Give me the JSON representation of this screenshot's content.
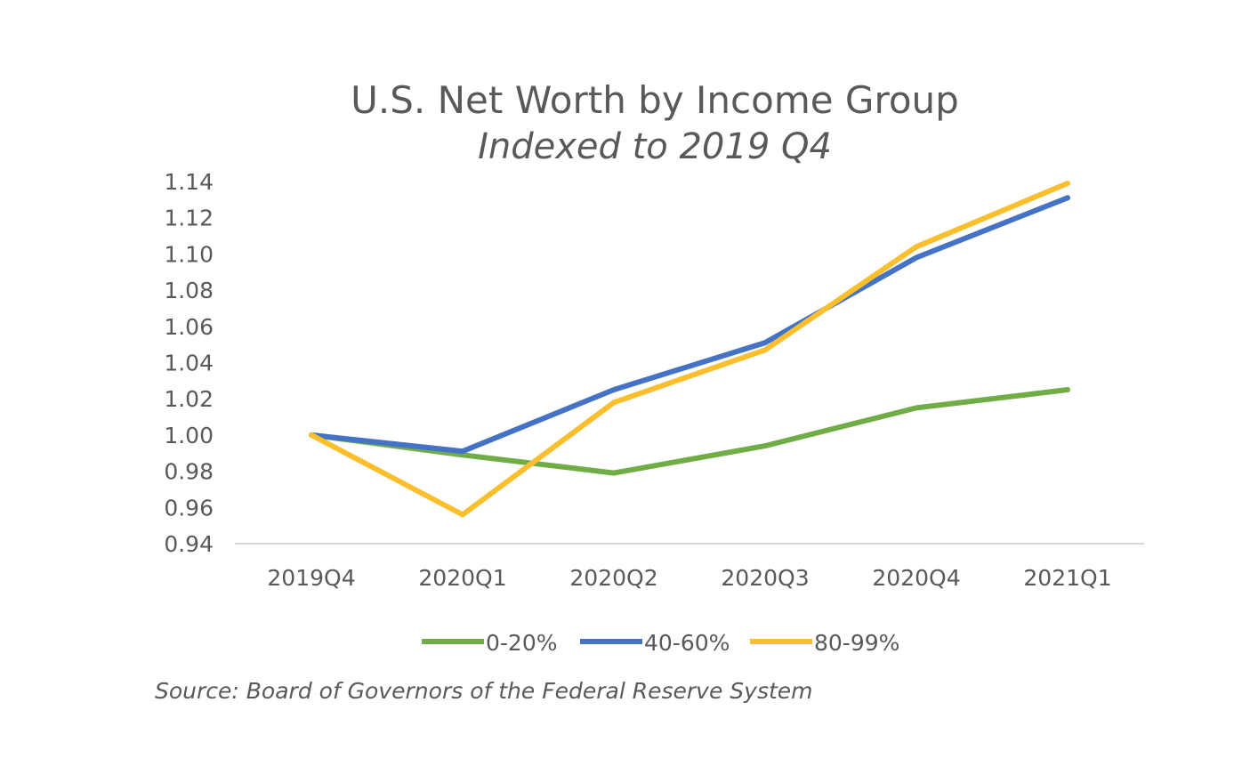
{
  "chart_data": {
    "type": "line",
    "title": "U.S. Net Worth by Income Group",
    "subtitle": "Indexed to 2019 Q4",
    "xlabel": "",
    "ylabel": "",
    "categories": [
      "2019Q4",
      "2020Q1",
      "2020Q2",
      "2020Q3",
      "2020Q4",
      "2021Q1"
    ],
    "ylim": [
      0.94,
      1.14
    ],
    "yticks": [
      "0.94",
      "0.96",
      "0.98",
      "1.00",
      "1.02",
      "1.04",
      "1.06",
      "1.08",
      "1.10",
      "1.12",
      "1.14"
    ],
    "grid": false,
    "legend_position": "bottom",
    "series": [
      {
        "name": "0-20%",
        "color": "#70ad47",
        "values": [
          1.0,
          0.989,
          0.979,
          0.994,
          1.015,
          1.025
        ]
      },
      {
        "name": "40-60%",
        "color": "#4472c4",
        "values": [
          1.0,
          0.991,
          1.025,
          1.051,
          1.098,
          1.131
        ]
      },
      {
        "name": "80-99%",
        "color": "#fbbf2d",
        "values": [
          1.0,
          0.956,
          1.018,
          1.047,
          1.104,
          1.139
        ]
      }
    ]
  },
  "footer": {
    "source": "Source: Board of Governors of the Federal Reserve System"
  }
}
